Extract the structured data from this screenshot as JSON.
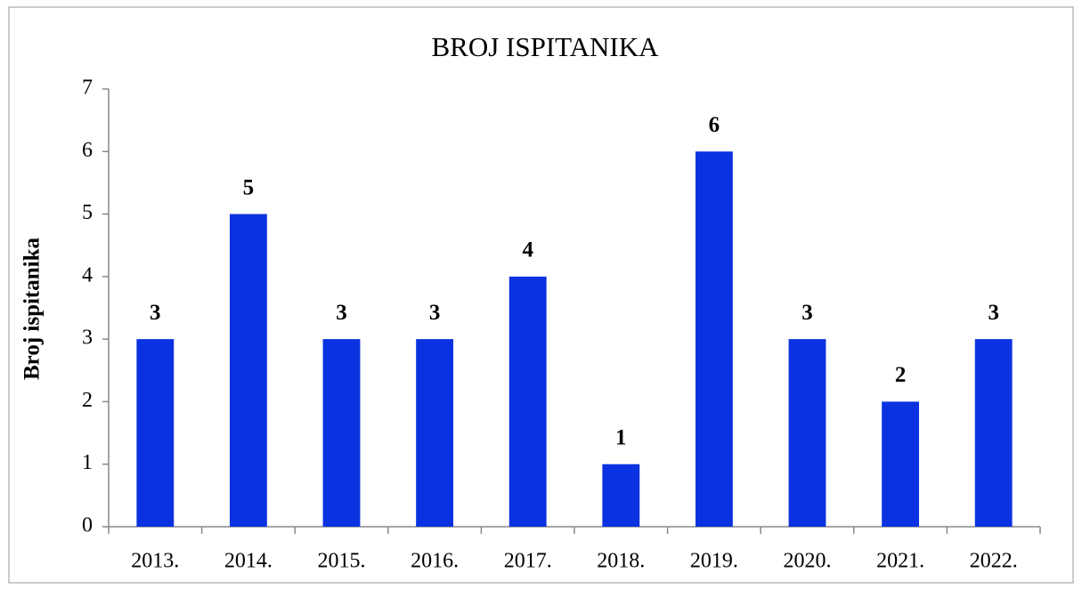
{
  "chart_data": {
    "type": "bar",
    "title": "BROJ ISPITANIKA",
    "y_label": "Broj ispitanika",
    "categories": [
      "2013.",
      "2014.",
      "2015.",
      "2016.",
      "2017.",
      "2018.",
      "2019.",
      "2020.",
      "2021.",
      "2022."
    ],
    "values": [
      3,
      5,
      3,
      3,
      4,
      1,
      6,
      3,
      2,
      3
    ],
    "color": "#0a32e0",
    "ylim": [
      0,
      7
    ],
    "yticks": [
      0,
      1,
      2,
      3,
      4,
      5,
      6,
      7
    ],
    "grid": false
  }
}
